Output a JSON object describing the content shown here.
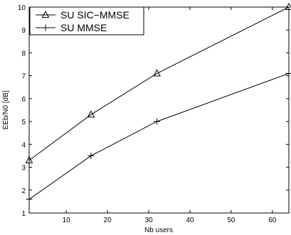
{
  "chart_data": {
    "type": "line",
    "xlabel": "Nb users",
    "ylabel": "EEb/N0 [dB]",
    "xlim": [
      1,
      64
    ],
    "ylim": [
      1,
      10
    ],
    "xticks": [
      10,
      20,
      30,
      40,
      50,
      60
    ],
    "yticks": [
      1,
      2,
      3,
      4,
      5,
      6,
      7,
      8,
      9,
      10
    ],
    "grid": false,
    "legend_position": "top-left",
    "series": [
      {
        "name": "SU SIC−MMSE",
        "marker": "triangle",
        "color": "#000000",
        "x": [
          1,
          16,
          32,
          64
        ],
        "y": [
          3.3,
          5.3,
          7.1,
          10.0
        ]
      },
      {
        "name": "SU MMSE",
        "marker": "plus",
        "color": "#000000",
        "x": [
          1,
          16,
          32,
          64
        ],
        "y": [
          1.6,
          3.5,
          5.0,
          7.1
        ]
      }
    ]
  }
}
